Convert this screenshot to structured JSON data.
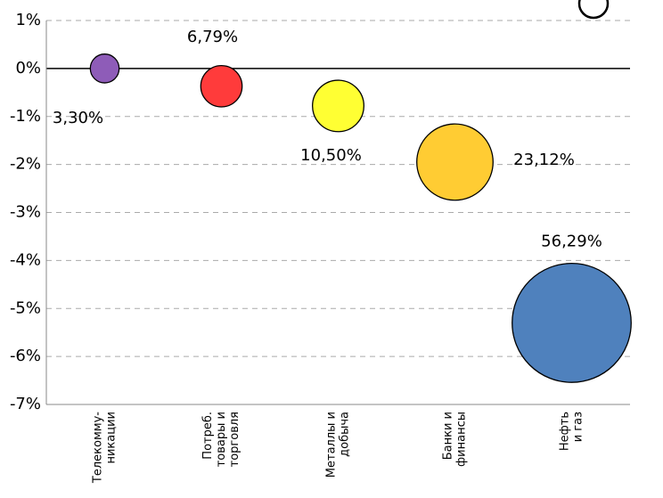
{
  "chart_data": {
    "type": "bubble",
    "categories": [
      [
        "Телекомму-",
        "никации"
      ],
      [
        "Потреб.",
        "товары и",
        "торговля"
      ],
      [
        "Металлы и",
        "добыча"
      ],
      [
        "Банки и",
        "финансы"
      ],
      [
        "Нефть",
        "и газ"
      ]
    ],
    "series": [
      {
        "values": [
          0.0,
          -0.37,
          -0.78,
          -1.95,
          -5.3
        ],
        "sizes": [
          3.3,
          6.79,
          10.5,
          23.12,
          56.29
        ],
        "value_labels": [
          "3,30%",
          "6,79%",
          "10,50%",
          "23,12%",
          "56,29%"
        ],
        "colors": [
          "#8e5cb8",
          "#ff3b3b",
          "#ffff33",
          "#ffcc33",
          "#4f81bd"
        ]
      }
    ],
    "ylim": [
      -7,
      1
    ],
    "yticks": [
      {
        "value": 1,
        "label": "1%"
      },
      {
        "value": 0,
        "label": "0%"
      },
      {
        "value": -1,
        "label": "-1%"
      },
      {
        "value": -2,
        "label": "-2%"
      },
      {
        "value": -3,
        "label": "-3%"
      },
      {
        "value": -4,
        "label": "-4%"
      },
      {
        "value": -5,
        "label": "-5%"
      },
      {
        "value": -6,
        "label": "-6%"
      },
      {
        "value": -7,
        "label": "-7%"
      }
    ],
    "grid": true
  }
}
